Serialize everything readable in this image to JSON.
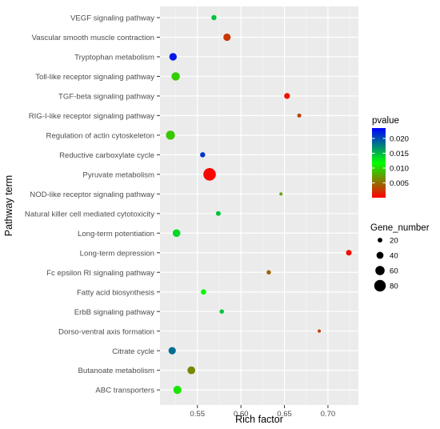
{
  "chart_data": {
    "type": "scatter",
    "title": "",
    "xlabel": "Rich factor",
    "ylabel": "Pathway term",
    "xlim": [
      0.507,
      0.735
    ],
    "xticks": [
      0.55,
      0.6,
      0.65,
      0.7
    ],
    "xtick_labels": [
      "0.55",
      "0.60",
      "0.65",
      "0.70"
    ],
    "grid": true,
    "legend_position": "right",
    "color_legend": {
      "title": "pvalue",
      "min": 0.0,
      "max": 0.0235,
      "ticks": [
        0.005,
        0.01,
        0.015,
        0.02
      ],
      "tick_labels": [
        "0.005",
        "0.010",
        "0.015",
        "0.020"
      ],
      "colors": [
        "#ff0000",
        "#00ff00",
        "#0000ff"
      ]
    },
    "size_legend": {
      "title": "Gene_number",
      "values": [
        20,
        40,
        60,
        80
      ],
      "labels": [
        "20",
        "40",
        "60",
        "80"
      ]
    },
    "points": [
      {
        "term": "VEGF signaling pathway",
        "rich_factor": 0.569,
        "pvalue": 0.0145,
        "gene_number": 24
      },
      {
        "term": "Vascular smooth muscle contraction",
        "rich_factor": 0.584,
        "pvalue": 0.0025,
        "gene_number": 43
      },
      {
        "term": "Tryptophan metabolism",
        "rich_factor": 0.522,
        "pvalue": 0.0225,
        "gene_number": 44
      },
      {
        "term": "Toll-like receptor signaling pathway",
        "rich_factor": 0.525,
        "pvalue": 0.0095,
        "gene_number": 52
      },
      {
        "term": "TGF-beta signaling pathway",
        "rich_factor": 0.653,
        "pvalue": 0.0008,
        "gene_number": 30
      },
      {
        "term": "RIG-I-like receptor signaling pathway",
        "rich_factor": 0.667,
        "pvalue": 0.0028,
        "gene_number": 14
      },
      {
        "term": "Regulation of actin cytoskeleton",
        "rich_factor": 0.519,
        "pvalue": 0.0092,
        "gene_number": 57
      },
      {
        "term": "Reductive carboxylate cycle",
        "rich_factor": 0.556,
        "pvalue": 0.021,
        "gene_number": 24
      },
      {
        "term": "Pyruvate metabolism",
        "rich_factor": 0.564,
        "pvalue": 0.0003,
        "gene_number": 88
      },
      {
        "term": "NOD-like receptor signaling pathway",
        "rich_factor": 0.646,
        "pvalue": 0.0075,
        "gene_number": 6
      },
      {
        "term": "Natural killer cell mediated cytotoxicity",
        "rich_factor": 0.574,
        "pvalue": 0.0145,
        "gene_number": 21
      },
      {
        "term": "Long-term potentiation",
        "rich_factor": 0.526,
        "pvalue": 0.0135,
        "gene_number": 46
      },
      {
        "term": "Long-term depression",
        "rich_factor": 0.724,
        "pvalue": 0.0005,
        "gene_number": 28
      },
      {
        "term": "Fc epsilon RI signaling pathway",
        "rich_factor": 0.632,
        "pvalue": 0.0045,
        "gene_number": 17
      },
      {
        "term": "Fatty acid biosynthesis",
        "rich_factor": 0.557,
        "pvalue": 0.012,
        "gene_number": 26
      },
      {
        "term": "ErbB signaling pathway",
        "rich_factor": 0.578,
        "pvalue": 0.0145,
        "gene_number": 17
      },
      {
        "term": "Dorso-ventral axis formation",
        "rich_factor": 0.69,
        "pvalue": 0.0028,
        "gene_number": 7
      },
      {
        "term": "Citrate cycle",
        "rich_factor": 0.521,
        "pvalue": 0.0185,
        "gene_number": 43
      },
      {
        "term": "Butanoate metabolism",
        "rich_factor": 0.543,
        "pvalue": 0.0062,
        "gene_number": 47
      },
      {
        "term": "ABC transporters",
        "rich_factor": 0.527,
        "pvalue": 0.0105,
        "gene_number": 50
      }
    ]
  }
}
